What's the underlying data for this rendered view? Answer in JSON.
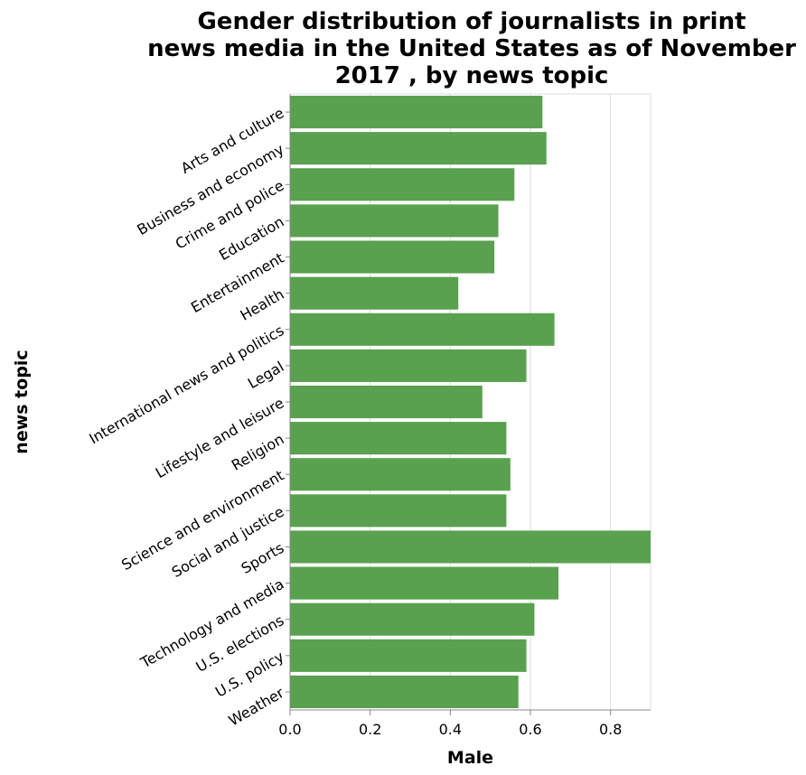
{
  "chart_data": {
    "type": "bar",
    "orientation": "horizontal",
    "title_lines": [
      "Gender distribution of journalists in print",
      "news media in the United States as of November",
      "2017 , by news topic"
    ],
    "xlabel": "Male",
    "ylabel": "news topic",
    "xlim": [
      0,
      0.9
    ],
    "xticks": [
      0.0,
      0.2,
      0.4,
      0.6,
      0.8
    ],
    "xtick_labels": [
      "0.0",
      "0.2",
      "0.4",
      "0.6",
      "0.8"
    ],
    "grid": true,
    "bar_color": "#59a14f",
    "categories": [
      "Arts and culture",
      "Business and economy",
      "Crime and police",
      "Education",
      "Entertainment",
      "Health",
      "International news and politics",
      "Legal",
      "Lifestyle and leisure",
      "Religion",
      "Science and environment",
      "Social and justice",
      "Sports",
      "Technology and media",
      "U.S. elections",
      "U.S. policy",
      "Weather"
    ],
    "values": [
      0.63,
      0.64,
      0.56,
      0.52,
      0.51,
      0.42,
      0.66,
      0.59,
      0.48,
      0.54,
      0.55,
      0.54,
      0.9,
      0.67,
      0.61,
      0.59,
      0.57
    ]
  }
}
